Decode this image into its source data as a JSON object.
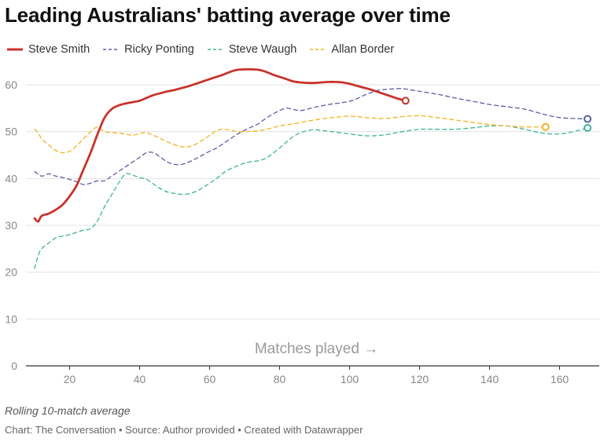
{
  "title": "Leading Australians' batting average over time",
  "note": "Rolling 10-match average",
  "footer": "Chart: The Conversation • Source: Author provided • Created with Datawrapper",
  "chart_data": {
    "type": "line",
    "title": "Leading Australians' batting average over time",
    "xlabel": "Matches played →",
    "ylabel": "",
    "xlim": [
      8,
      170
    ],
    "ylim": [
      0,
      65
    ],
    "xticks": [
      20,
      40,
      60,
      80,
      100,
      120,
      140,
      160
    ],
    "yticks": [
      0,
      10,
      20,
      30,
      40,
      50,
      60
    ],
    "grid": "horizontal",
    "legend": "top-left",
    "series": [
      {
        "name": "Steve Smith",
        "color": "#c9322c",
        "dash": "solid",
        "x": [
          10,
          11,
          12,
          14,
          16,
          18,
          20,
          22,
          24,
          26,
          28,
          30,
          32,
          34,
          36,
          38,
          40,
          42,
          44,
          46,
          48,
          50,
          52,
          54,
          56,
          58,
          60,
          62,
          64,
          66,
          68,
          70,
          72,
          74,
          76,
          78,
          80,
          82,
          84,
          86,
          88,
          90,
          92,
          94,
          96,
          98,
          100,
          102,
          104,
          106,
          108,
          110,
          112,
          114,
          116
        ],
        "values": [
          31.5,
          30.8,
          32,
          32.5,
          33.3,
          34.4,
          36.2,
          38.5,
          42,
          45.5,
          49.5,
          53,
          54.8,
          55.6,
          56,
          56.3,
          56.6,
          57.2,
          57.8,
          58.2,
          58.6,
          58.9,
          59.3,
          59.7,
          60.2,
          60.7,
          61.2,
          61.7,
          62.2,
          62.8,
          63.2,
          63.3,
          63.3,
          63.2,
          62.8,
          62.2,
          61.7,
          61.2,
          60.7,
          60.5,
          60.4,
          60.4,
          60.5,
          60.6,
          60.6,
          60.5,
          60.2,
          59.8,
          59.4,
          59,
          58.5,
          58,
          57.5,
          57,
          56.6
        ]
      },
      {
        "name": "Ricky Ponting",
        "color": "#5c5ca6",
        "dash": "dashed",
        "x": [
          10,
          12,
          14,
          16,
          18,
          20,
          22,
          24,
          26,
          28,
          30,
          32,
          34,
          36,
          38,
          40,
          42,
          44,
          46,
          48,
          50,
          52,
          54,
          56,
          58,
          60,
          62,
          64,
          66,
          68,
          70,
          72,
          74,
          76,
          78,
          80,
          82,
          84,
          86,
          88,
          90,
          92,
          94,
          96,
          98,
          100,
          102,
          104,
          106,
          108,
          110,
          112,
          114,
          116,
          120,
          125,
          130,
          135,
          140,
          145,
          150,
          155,
          160,
          165,
          168
        ],
        "values": [
          41.5,
          40.5,
          41,
          40.5,
          40.2,
          39.8,
          39.3,
          38.7,
          39,
          39.5,
          39.5,
          40.5,
          41.5,
          42.5,
          43.5,
          44.5,
          45.5,
          45.5,
          44.5,
          43.5,
          43,
          43,
          43.5,
          44.2,
          45,
          45.8,
          46.5,
          47.5,
          48.5,
          49.5,
          50.3,
          51,
          51.7,
          52.8,
          53.7,
          54.5,
          55,
          54.7,
          54.5,
          54.8,
          55.2,
          55.5,
          55.8,
          56,
          56.2,
          56.5,
          57,
          57.7,
          58.3,
          58.8,
          59,
          59.1,
          59.2,
          59.1,
          58.6,
          58,
          57.2,
          56.5,
          55.8,
          55.3,
          54.8,
          53.8,
          53,
          52.8,
          52.7
        ]
      },
      {
        "name": "Steve Waugh",
        "color": "#3fb39a",
        "dash": "dashed",
        "x": [
          10,
          11,
          12,
          14,
          16,
          18,
          20,
          22,
          24,
          26,
          28,
          30,
          32,
          34,
          36,
          38,
          40,
          42,
          44,
          46,
          48,
          50,
          52,
          54,
          56,
          58,
          60,
          62,
          64,
          66,
          68,
          70,
          72,
          74,
          76,
          78,
          80,
          82,
          84,
          86,
          88,
          90,
          95,
          100,
          105,
          110,
          115,
          120,
          125,
          130,
          135,
          140,
          145,
          150,
          155,
          160,
          165,
          168
        ],
        "values": [
          20.8,
          23.5,
          25,
          26.2,
          27.3,
          27.7,
          28,
          28.5,
          29,
          29.3,
          31,
          34,
          36.5,
          39,
          41,
          40.7,
          40.2,
          39.8,
          38.8,
          37.8,
          37.1,
          36.8,
          36.6,
          36.7,
          37.2,
          38,
          39,
          40,
          41.2,
          42.1,
          42.7,
          43.3,
          43.6,
          43.8,
          44.3,
          45.3,
          46.5,
          47.8,
          49,
          49.8,
          50.2,
          50.4,
          50,
          49.5,
          49.1,
          49.3,
          50,
          50.5,
          50.5,
          50.5,
          50.8,
          51.2,
          51.2,
          50.5,
          49.7,
          49.5,
          50.2,
          50.8
        ]
      },
      {
        "name": "Allan Border",
        "color": "#f2b222",
        "dash": "dashed",
        "x": [
          10,
          11,
          12,
          14,
          16,
          18,
          20,
          22,
          24,
          26,
          28,
          30,
          32,
          34,
          36,
          38,
          40,
          42,
          44,
          46,
          48,
          50,
          52,
          54,
          56,
          58,
          60,
          62,
          64,
          66,
          68,
          70,
          75,
          80,
          85,
          90,
          95,
          100,
          105,
          110,
          115,
          120,
          125,
          130,
          135,
          140,
          145,
          150,
          156
        ],
        "values": [
          50.5,
          49.8,
          48.5,
          47.2,
          46,
          45.5,
          45.8,
          47,
          48.5,
          50,
          51,
          50,
          49.8,
          49.7,
          49.5,
          49.2,
          49.6,
          49.8,
          49.2,
          48.5,
          47.8,
          47.2,
          46.8,
          46.8,
          47.3,
          48.2,
          49.2,
          50.2,
          50.5,
          50.3,
          50,
          50,
          50.3,
          51.2,
          51.8,
          52.5,
          53,
          53.3,
          53,
          52.8,
          53.2,
          53.4,
          53,
          52.5,
          52,
          51.5,
          51.2,
          51,
          51
        ]
      }
    ]
  }
}
